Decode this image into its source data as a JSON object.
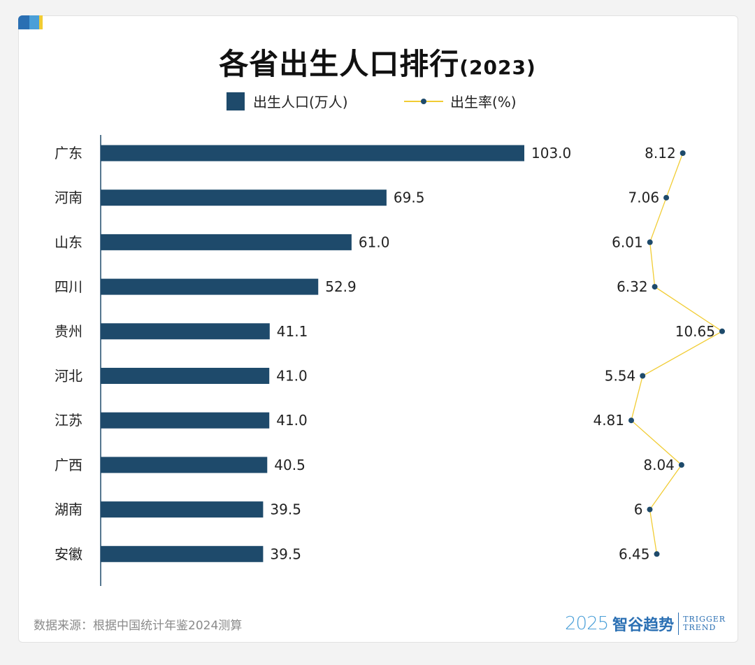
{
  "header": {
    "title": "各省出生人口排行",
    "title_year": "(2023)"
  },
  "legend": {
    "bar_label": "出生人口(万人)",
    "line_label": "出生率(%)"
  },
  "chart_data": {
    "type": "bar",
    "orientation": "horizontal",
    "categories": [
      "广东",
      "河南",
      "山东",
      "四川",
      "贵州",
      "河北",
      "江苏",
      "广西",
      "湖南",
      "安徽"
    ],
    "series": [
      {
        "name": "出生人口(万人)",
        "type": "bar",
        "values": [
          103.0,
          69.5,
          61.0,
          52.9,
          41.1,
          41.0,
          41.0,
          40.5,
          39.5,
          39.5
        ],
        "labels": [
          "103.0",
          "69.5",
          "61.0",
          "52.9",
          "41.1",
          "41.0",
          "41.0",
          "40.5",
          "39.5",
          "39.5"
        ],
        "color": "#1e4a6b"
      },
      {
        "name": "出生率(%)",
        "type": "line",
        "values": [
          8.12,
          7.06,
          6.01,
          6.32,
          10.65,
          5.54,
          4.81,
          8.04,
          6,
          6.45
        ],
        "labels": [
          "8.12",
          "7.06",
          "6.01",
          "6.32",
          "10.65",
          "5.54",
          "4.81",
          "8.04",
          "6",
          "6.45"
        ],
        "line_color": "#f1cc33",
        "marker_color": "#1e4a6b"
      }
    ],
    "grid": false,
    "legend_position": "top-center"
  },
  "footer": {
    "source": "数据来源：根据中国统计年鉴2024测算",
    "brand_year": "2025",
    "brand_name": "智谷趋势",
    "brand_en_1": "TRIGGER",
    "brand_en_2": "TREND"
  },
  "colors": {
    "bar": "#1e4a6b",
    "line": "#f1cc33",
    "accent_blue": "#2a6fb3"
  }
}
